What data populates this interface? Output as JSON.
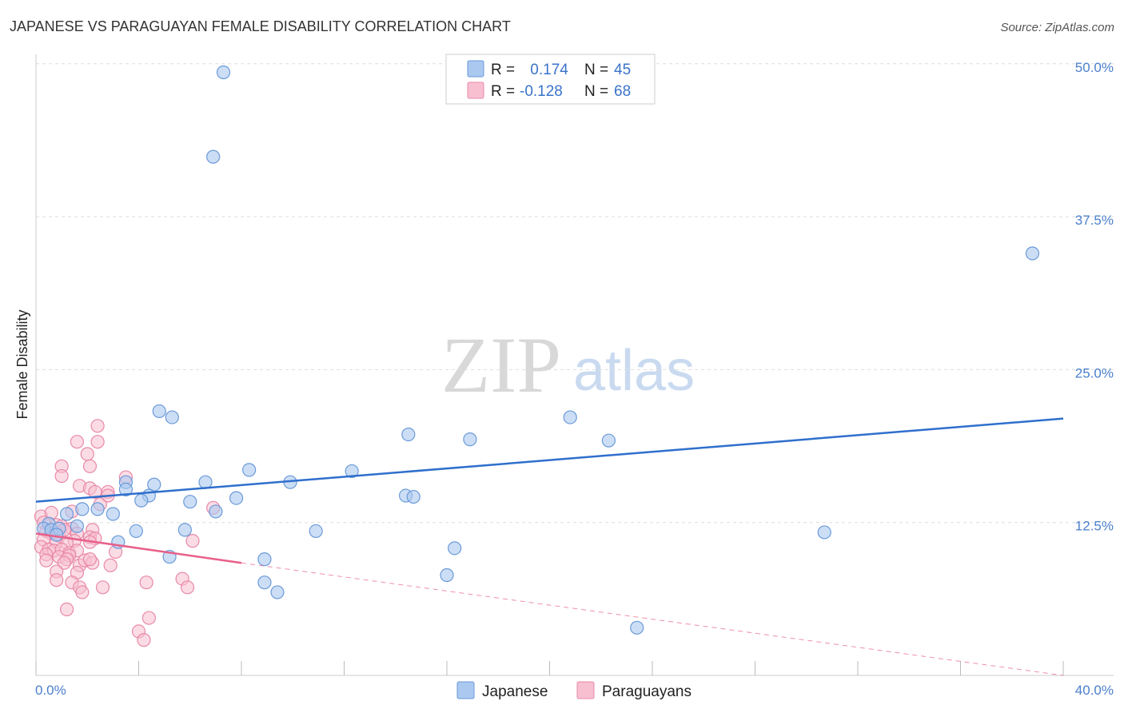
{
  "chart_data": {
    "type": "scatter",
    "title": "JAPANESE VS PARAGUAYAN FEMALE DISABILITY CORRELATION CHART",
    "source": "Source: ZipAtlas.com",
    "ylabel": "Female Disability",
    "xlabel": "",
    "xlim": [
      0,
      40
    ],
    "ylim": [
      0,
      52
    ],
    "x_tick_labels": [
      "0.0%",
      "40.0%"
    ],
    "y_ticks": [
      12.5,
      25.0,
      37.5,
      50.0
    ],
    "y_tick_labels": [
      "12.5%",
      "25.0%",
      "37.5%",
      "50.0%"
    ],
    "watermark": {
      "zip": "ZIP",
      "atlas": "atlas"
    },
    "legend": {
      "rows": [
        {
          "r_label": "R =",
          "r_value": " 0.174",
          "n_label": "N =",
          "n_value": "45"
        },
        {
          "r_label": "R =",
          "r_value": "-0.128",
          "n_label": "N =",
          "n_value": "68"
        }
      ]
    },
    "colors": {
      "japanese_fill": "#aac8f0",
      "japanese_stroke": "#6a9ad8",
      "japanese_line": "#2f6fcc",
      "paraguayan_fill": "#f7bfd0",
      "paraguayan_stroke": "#e889a8",
      "paraguayan_line": "#e8608a",
      "grid": "#dddddd"
    },
    "series": [
      {
        "name": "Japanese",
        "trend": {
          "x0": 0,
          "y0": 14.2,
          "x1": 40,
          "y1": 21.0
        },
        "points": [
          [
            7.3,
            49.3
          ],
          [
            6.9,
            42.4
          ],
          [
            38.8,
            34.5
          ],
          [
            4.8,
            21.6
          ],
          [
            5.3,
            21.1
          ],
          [
            20.8,
            21.1
          ],
          [
            14.5,
            19.7
          ],
          [
            16.9,
            19.3
          ],
          [
            22.3,
            19.2
          ],
          [
            8.3,
            16.8
          ],
          [
            12.3,
            16.7
          ],
          [
            9.9,
            15.8
          ],
          [
            6.6,
            15.8
          ],
          [
            4.6,
            15.6
          ],
          [
            3.5,
            15.8
          ],
          [
            3.5,
            15.2
          ],
          [
            14.4,
            14.7
          ],
          [
            14.7,
            14.6
          ],
          [
            7.8,
            14.5
          ],
          [
            4.4,
            14.7
          ],
          [
            4.1,
            14.3
          ],
          [
            6.0,
            14.2
          ],
          [
            0.5,
            12.4
          ],
          [
            1.8,
            13.6
          ],
          [
            1.2,
            13.2
          ],
          [
            3.0,
            13.2
          ],
          [
            2.4,
            13.6
          ],
          [
            7.0,
            13.4
          ],
          [
            0.3,
            12.0
          ],
          [
            0.6,
            11.9
          ],
          [
            0.9,
            12.0
          ],
          [
            1.6,
            12.2
          ],
          [
            0.8,
            11.5
          ],
          [
            3.9,
            11.8
          ],
          [
            5.8,
            11.9
          ],
          [
            10.9,
            11.8
          ],
          [
            30.7,
            11.7
          ],
          [
            3.2,
            10.9
          ],
          [
            16.3,
            10.4
          ],
          [
            5.2,
            9.7
          ],
          [
            8.9,
            9.5
          ],
          [
            16.0,
            8.2
          ],
          [
            8.9,
            7.6
          ],
          [
            9.4,
            6.8
          ],
          [
            23.4,
            3.9
          ]
        ]
      },
      {
        "name": "Paraguayans",
        "trend_solid": {
          "x0": 0,
          "y0": 11.6,
          "x1": 8.0,
          "y1": 9.2
        },
        "trend_dashed": {
          "x0": 8.0,
          "y0": 9.2,
          "x1": 40,
          "y1": 0.0
        },
        "points": [
          [
            2.4,
            20.4
          ],
          [
            1.6,
            19.1
          ],
          [
            2.4,
            19.1
          ],
          [
            2.0,
            18.1
          ],
          [
            1.0,
            17.1
          ],
          [
            2.1,
            17.1
          ],
          [
            1.0,
            16.3
          ],
          [
            3.5,
            16.2
          ],
          [
            1.7,
            15.5
          ],
          [
            2.1,
            15.3
          ],
          [
            2.3,
            15.0
          ],
          [
            2.8,
            15.0
          ],
          [
            2.5,
            14.0
          ],
          [
            6.9,
            13.7
          ],
          [
            0.2,
            13.0
          ],
          [
            0.6,
            13.3
          ],
          [
            1.4,
            13.4
          ],
          [
            0.3,
            12.5
          ],
          [
            0.8,
            12.3
          ],
          [
            1.0,
            12.2
          ],
          [
            1.4,
            12.0
          ],
          [
            0.4,
            11.8
          ],
          [
            0.6,
            11.6
          ],
          [
            0.9,
            11.4
          ],
          [
            1.1,
            11.9
          ],
          [
            2.2,
            11.9
          ],
          [
            1.6,
            11.6
          ],
          [
            1.5,
            11.0
          ],
          [
            0.3,
            11.1
          ],
          [
            0.8,
            10.9
          ],
          [
            1.2,
            10.8
          ],
          [
            2.1,
            11.3
          ],
          [
            2.3,
            11.2
          ],
          [
            6.1,
            11.0
          ],
          [
            2.1,
            10.9
          ],
          [
            0.2,
            10.5
          ],
          [
            0.5,
            10.3
          ],
          [
            0.7,
            10.2
          ],
          [
            1.0,
            10.3
          ],
          [
            1.3,
            10.0
          ],
          [
            1.6,
            10.2
          ],
          [
            0.4,
            9.9
          ],
          [
            0.9,
            9.7
          ],
          [
            1.3,
            9.8
          ],
          [
            1.2,
            9.5
          ],
          [
            3.1,
            10.1
          ],
          [
            0.4,
            9.4
          ],
          [
            1.1,
            9.2
          ],
          [
            1.7,
            9.0
          ],
          [
            1.9,
            9.4
          ],
          [
            2.2,
            9.2
          ],
          [
            2.1,
            9.5
          ],
          [
            2.9,
            9.0
          ],
          [
            1.6,
            8.4
          ],
          [
            0.8,
            8.5
          ],
          [
            5.7,
            7.9
          ],
          [
            0.8,
            7.8
          ],
          [
            1.4,
            7.6
          ],
          [
            4.3,
            7.6
          ],
          [
            1.7,
            7.2
          ],
          [
            2.6,
            7.2
          ],
          [
            5.9,
            7.2
          ],
          [
            1.8,
            6.8
          ],
          [
            1.2,
            5.4
          ],
          [
            4.4,
            4.7
          ],
          [
            4.0,
            3.6
          ],
          [
            4.2,
            2.9
          ],
          [
            2.8,
            14.7
          ]
        ]
      }
    ],
    "bottom_legend": [
      "Japanese",
      "Paraguayans"
    ]
  }
}
